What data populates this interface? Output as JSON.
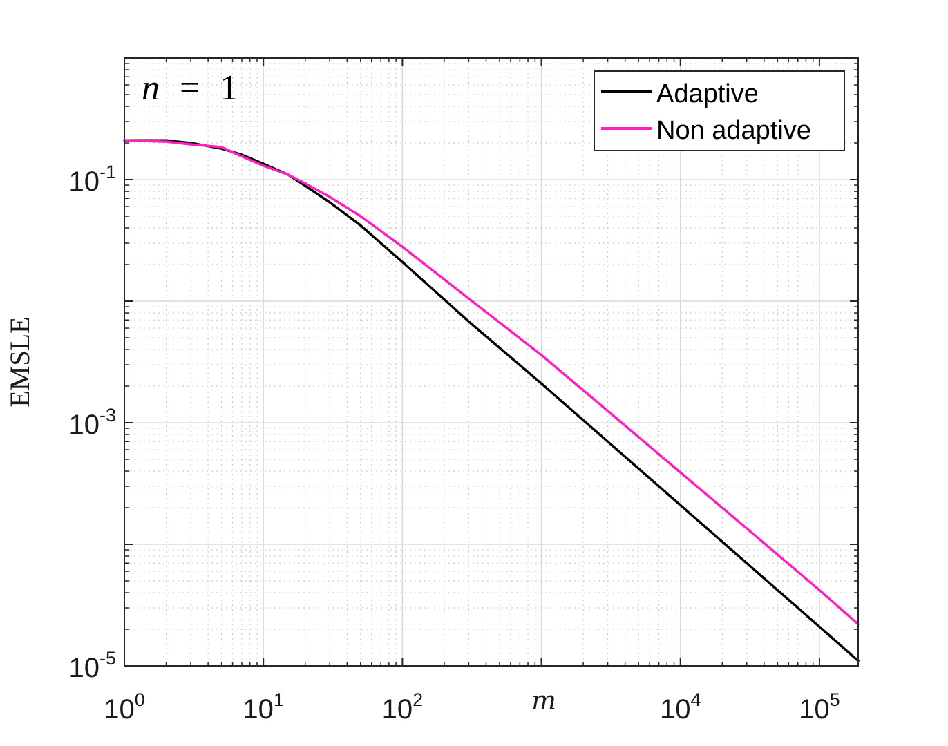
{
  "chart_data": {
    "type": "line",
    "title": "",
    "annotation": {
      "variable": "n",
      "operator": "=",
      "value": "1"
    },
    "xlabel": "m",
    "ylabel": "EMSLE",
    "xscale": "log",
    "yscale": "log",
    "xlim": [
      1,
      190000
    ],
    "ylim": [
      1e-05,
      1
    ],
    "xticks": [
      {
        "mantissa": "10",
        "exponent": "0",
        "value": 1
      },
      {
        "mantissa": "10",
        "exponent": "1",
        "value": 10
      },
      {
        "mantissa": "10",
        "exponent": "2",
        "value": 100
      },
      {
        "mantissa": "10",
        "exponent": "4",
        "value": 10000
      },
      {
        "mantissa": "10",
        "exponent": "5",
        "value": 100000
      }
    ],
    "yticks": [
      {
        "mantissa": "10",
        "exponent": "-1",
        "value": 0.1
      },
      {
        "mantissa": "10",
        "exponent": "-3",
        "value": 0.001
      },
      {
        "mantissa": "10",
        "exponent": "-5",
        "value": 1e-05
      }
    ],
    "grid": true,
    "minor_grid": true,
    "legend_position": "top-right",
    "series": [
      {
        "name": "Adaptive",
        "color": "#000000",
        "x": [
          1,
          2,
          3,
          5,
          7,
          10,
          15,
          20,
          30,
          50,
          100,
          300,
          1000,
          3000,
          10000,
          30000,
          100000,
          190000
        ],
        "y": [
          0.21,
          0.21,
          0.2,
          0.18,
          0.16,
          0.135,
          0.11,
          0.089,
          0.065,
          0.042,
          0.021,
          0.0068,
          0.0021,
          0.0007,
          0.00021,
          7e-05,
          2.1e-05,
          1.1e-05
        ]
      },
      {
        "name": "Non adaptive",
        "color": "#ff1fbf",
        "x": [
          1,
          2,
          3,
          5,
          7,
          10,
          15,
          20,
          30,
          50,
          100,
          300,
          1000,
          3000,
          10000,
          30000,
          100000,
          190000
        ],
        "y": [
          0.21,
          0.205,
          0.195,
          0.185,
          0.155,
          0.13,
          0.11,
          0.093,
          0.072,
          0.05,
          0.028,
          0.0105,
          0.0036,
          0.00125,
          0.00039,
          0.000135,
          4.2e-05,
          2.2e-05
        ]
      }
    ]
  }
}
